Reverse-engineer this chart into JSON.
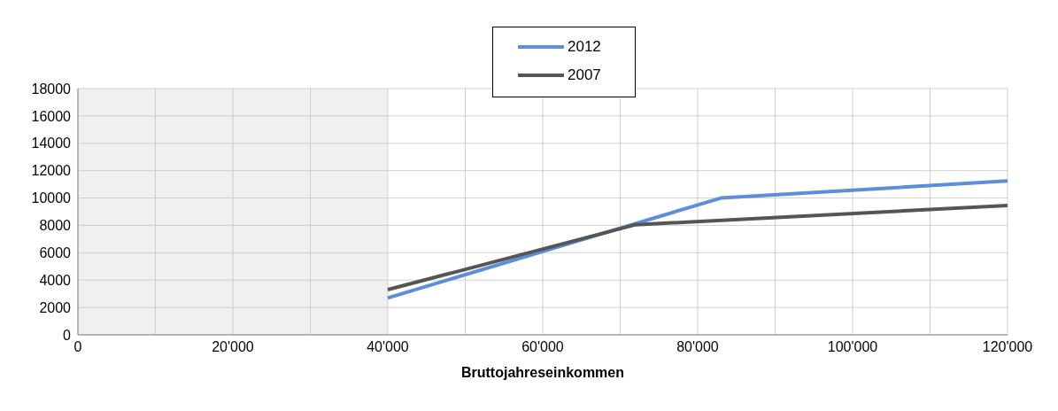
{
  "chart_data": {
    "type": "line",
    "xlabel": "Bruttojahreseinkommen",
    "xlim": [
      0,
      120000
    ],
    "xticks": [
      0,
      {
        "value": 10000,
        "label": null
      },
      {
        "value": 20000,
        "label": "20'000"
      },
      {
        "value": 30000,
        "label": null
      },
      {
        "value": 40000,
        "label": "40'000"
      },
      {
        "value": 50000,
        "label": null
      },
      {
        "value": 60000,
        "label": "60'000"
      },
      {
        "value": 70000,
        "label": null
      },
      {
        "value": 80000,
        "label": "80'000"
      },
      {
        "value": 90000,
        "label": null
      },
      {
        "value": 100000,
        "label": "100'000"
      },
      {
        "value": 110000,
        "label": null
      },
      {
        "value": 120000,
        "label": "120'000"
      }
    ],
    "ylim": [
      0,
      18000
    ],
    "yticks": [
      0,
      2000,
      4000,
      6000,
      8000,
      10000,
      12000,
      14000,
      16000,
      18000
    ],
    "series": [
      {
        "name": "2012",
        "color": "#5b8fd9",
        "x": [
          40000,
          83000,
          120000
        ],
        "values": [
          2700,
          10000,
          11250
        ]
      },
      {
        "name": "2007",
        "color": "#555555",
        "x": [
          40000,
          72000,
          120000
        ],
        "values": [
          3300,
          8050,
          9450
        ]
      }
    ],
    "bands": [
      {
        "axis": "x",
        "from": 0,
        "to": 40000,
        "color": "#f0f0f0"
      }
    ],
    "grid": true,
    "legend": "top",
    "marker": "none",
    "line_style": "solid"
  }
}
